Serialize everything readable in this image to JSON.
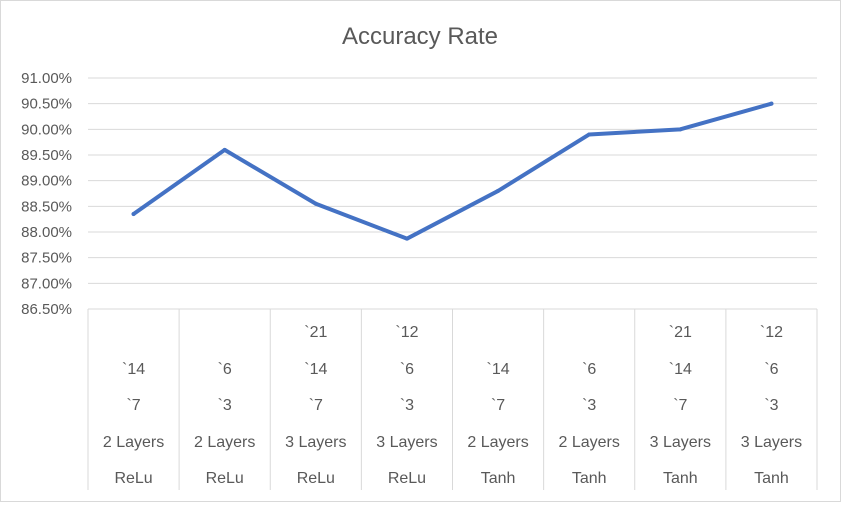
{
  "chart_data": {
    "type": "line",
    "title": "Accuracy Rate",
    "xlabel": "",
    "ylabel": "",
    "ylim": [
      0.865,
      0.91
    ],
    "ytick_step": 0.005,
    "y_format": "percent2",
    "grid": true,
    "legend": "none",
    "line_color": "#4472C4",
    "categories": [
      {
        "rows": [
          "",
          "`14",
          "`7",
          "2 Layers",
          "ReLu"
        ]
      },
      {
        "rows": [
          "",
          "`6",
          "`3",
          "2 Layers",
          "ReLu"
        ]
      },
      {
        "rows": [
          "`21",
          "`14",
          "`7",
          "3 Layers",
          "ReLu"
        ]
      },
      {
        "rows": [
          "`12",
          "`6",
          "`3",
          "3 Layers",
          "ReLu"
        ]
      },
      {
        "rows": [
          "",
          "`14",
          "`7",
          "2 Layers",
          "Tanh"
        ]
      },
      {
        "rows": [
          "",
          "`6",
          "`3",
          "2 Layers",
          "Tanh"
        ]
      },
      {
        "rows": [
          "`21",
          "`14",
          "`7",
          "3 Layers",
          "Tanh"
        ]
      },
      {
        "rows": [
          "`12",
          "`6",
          "`3",
          "3 Layers",
          "Tanh"
        ]
      }
    ],
    "series": [
      {
        "values": [
          0.8835,
          0.896,
          0.8855,
          0.8787,
          0.888,
          0.899,
          0.9,
          0.905
        ]
      }
    ]
  }
}
